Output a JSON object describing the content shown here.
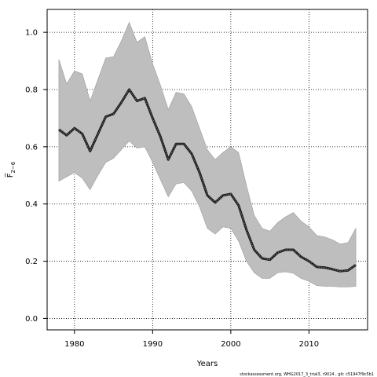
{
  "chart_data": {
    "type": "line",
    "xlabel": "Years",
    "ylabel": "F̅",
    "ylabel_subscript": "2−6",
    "xlim": [
      1976.5,
      2017.5
    ],
    "ylim": [
      -0.04,
      1.08
    ],
    "xticks": [
      1980,
      1990,
      2000,
      2010
    ],
    "yticks": [
      0.0,
      0.2,
      0.4,
      0.6,
      0.8,
      1.0
    ],
    "ytick_labels": [
      "0.0",
      "0.2",
      "0.4",
      "0.6",
      "0.8",
      "1.0"
    ],
    "grid": true,
    "footer": "stockassessment.org, WHG2017_3_trial3, r9024 , git: c51947f9c5b1",
    "colors": {
      "band": "#bebebe",
      "band_edge": "#9a9a9a",
      "line": "#1a1a1a",
      "grid": "#000000"
    },
    "series": [
      {
        "role": "estimate",
        "x": [
          1978,
          1979,
          1980,
          1981,
          1982,
          1983,
          1984,
          1985,
          1986,
          1987,
          1988,
          1989,
          1990,
          1991,
          1992,
          1993,
          1994,
          1995,
          1996,
          1997,
          1998,
          1999,
          2000,
          2001,
          2002,
          2003,
          2004,
          2005,
          2006,
          2007,
          2008,
          2009,
          2010,
          2011,
          2012,
          2013,
          2014,
          2015,
          2016
        ],
        "values": [
          0.66,
          0.64,
          0.665,
          0.645,
          0.585,
          0.645,
          0.705,
          0.715,
          0.755,
          0.8,
          0.76,
          0.77,
          0.7,
          0.635,
          0.555,
          0.61,
          0.61,
          0.575,
          0.51,
          0.43,
          0.405,
          0.43,
          0.435,
          0.395,
          0.31,
          0.24,
          0.21,
          0.205,
          0.23,
          0.24,
          0.24,
          0.215,
          0.2,
          0.18,
          0.178,
          0.172,
          0.165,
          0.168,
          0.187
        ]
      },
      {
        "role": "lower",
        "values": [
          0.48,
          0.495,
          0.51,
          0.49,
          0.45,
          0.5,
          0.545,
          0.56,
          0.59,
          0.62,
          0.595,
          0.6,
          0.545,
          0.485,
          0.425,
          0.47,
          0.475,
          0.445,
          0.39,
          0.315,
          0.295,
          0.32,
          0.315,
          0.27,
          0.2,
          0.16,
          0.14,
          0.14,
          0.16,
          0.163,
          0.158,
          0.14,
          0.13,
          0.115,
          0.112,
          0.112,
          0.11,
          0.11,
          0.112
        ]
      },
      {
        "role": "upper",
        "values": [
          0.905,
          0.82,
          0.865,
          0.855,
          0.76,
          0.835,
          0.91,
          0.915,
          0.97,
          1.035,
          0.965,
          0.985,
          0.89,
          0.815,
          0.73,
          0.79,
          0.785,
          0.74,
          0.665,
          0.59,
          0.555,
          0.58,
          0.6,
          0.58,
          0.465,
          0.36,
          0.315,
          0.305,
          0.335,
          0.355,
          0.37,
          0.34,
          0.32,
          0.29,
          0.285,
          0.275,
          0.26,
          0.265,
          0.315
        ]
      }
    ]
  }
}
